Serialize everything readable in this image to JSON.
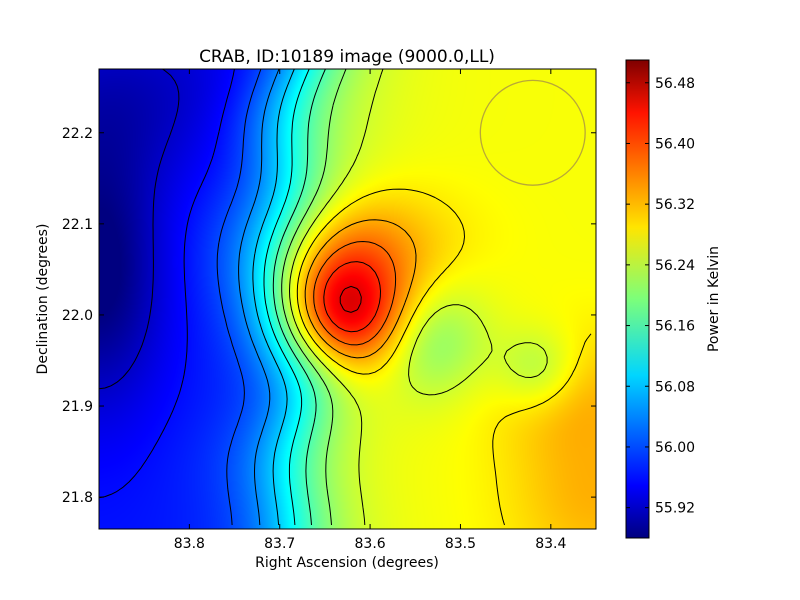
{
  "chart_data": {
    "type": "heatmap",
    "title": "CRAB, ID:10189 image (9000.0,LL)",
    "xlabel": "Right Ascension (degrees)",
    "ylabel": "Declination (degrees)",
    "colorbar_label": "Power in Kelvin",
    "colormap": "jet",
    "xlim": [
      83.9,
      83.35
    ],
    "ylim": [
      21.765,
      22.27
    ],
    "x_ticks": [
      83.8,
      83.7,
      83.6,
      83.5,
      83.4
    ],
    "x_tick_labels": [
      "83.8",
      "83.7",
      "83.6",
      "83.5",
      "83.4"
    ],
    "y_ticks": [
      21.8,
      21.9,
      22.0,
      22.1,
      22.2
    ],
    "y_tick_labels": [
      "21.8",
      "21.9",
      "22.0",
      "22.1",
      "22.2"
    ],
    "value_range": [
      55.88,
      56.51
    ],
    "colorbar_ticks": [
      55.92,
      56.0,
      56.08,
      56.16,
      56.24,
      56.32,
      56.4,
      56.48
    ],
    "colorbar_tick_labels": [
      "55.92",
      "56.00",
      "56.08",
      "56.16",
      "56.24",
      "56.32",
      "56.40",
      "56.48"
    ],
    "background_level": 56.27,
    "features": [
      {
        "kind": "peak",
        "ra": 83.628,
        "dec": 21.995,
        "value": 56.505
      },
      {
        "kind": "local-maximum",
        "ra": 83.472,
        "dec": 21.943,
        "value": 56.215
      },
      {
        "kind": "minimum",
        "ra": 83.9,
        "dec": 22.02,
        "value": 55.885
      },
      {
        "kind": "low-band",
        "ra": 83.86,
        "dec": 22.25,
        "value": 55.95
      }
    ],
    "beam_circle": {
      "ra": 83.42,
      "dec": 22.2,
      "radius_deg": 0.058
    },
    "contours": true
  }
}
